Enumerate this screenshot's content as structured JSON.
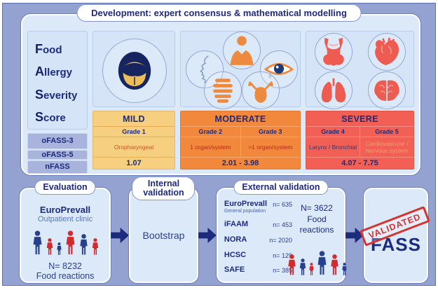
{
  "figure": {
    "title": "Development: expert consensus & mathematical modelling"
  },
  "score_name": {
    "words": [
      "Food",
      "Allergy",
      "Severity",
      "Score"
    ]
  },
  "scales": [
    "oFASS-3",
    "oFASS-5",
    "nFASS"
  ],
  "severity": {
    "mild": {
      "header": "MILD",
      "grade1": "Grade 1",
      "desc1": "Oropharyngeal",
      "value": "1.07",
      "icons": [
        "mouth-icon"
      ]
    },
    "moderate": {
      "header": "MODERATE",
      "grade1": "Grade 2",
      "desc1": "1 organ/system",
      "grade2": "Grade 3",
      "desc2": ">1 organ/system",
      "value": "2.01 - 3.98",
      "icons": [
        "skin-icon",
        "torso-icon",
        "eye-icon",
        "gut-icon",
        "uterus-icon"
      ]
    },
    "severe": {
      "header": "SEVERE",
      "grade1": "Grade 4",
      "desc1": "Larynx / Bronchial",
      "grade2": "Grade 5",
      "desc2": "Cardiovascular / Nervous system",
      "value": "4.07 - 7.75",
      "icons": [
        "larynx-icon",
        "heart-icon",
        "lungs-icon",
        "brain-icon"
      ]
    }
  },
  "evaluation": {
    "pill": "Evaluation",
    "org": "EuroPrevall",
    "sub": "Outpatient clinic",
    "n": "N= 8232",
    "caption": "Food reactions",
    "people": [
      {
        "t": "a",
        "c": "navy"
      },
      {
        "t": "c",
        "c": "red"
      },
      {
        "t": "d",
        "c": "navy"
      },
      {
        "t": "a",
        "c": "red"
      },
      {
        "t": "b",
        "c": "navy"
      },
      {
        "t": "c",
        "c": "red"
      }
    ]
  },
  "internal": {
    "pill": "Internal validation",
    "label": "Bootstrap"
  },
  "external": {
    "pill": "External validation",
    "studies": [
      {
        "name": "EuroPrevall",
        "sub": "General population",
        "n": "n= 635"
      },
      {
        "name": "iFAAM",
        "n": "n= 453"
      },
      {
        "name": "NORA",
        "n": "n= 2020"
      },
      {
        "name": "HCSC",
        "n": "n= 129"
      },
      {
        "name": "SAFE",
        "n": "n= 385"
      }
    ],
    "total": "N= 3622",
    "caption": "Food reactions",
    "people": [
      {
        "t": "b",
        "c": "red"
      },
      {
        "t": "c",
        "c": "navy"
      },
      {
        "t": "d",
        "c": "red"
      },
      {
        "t": "a",
        "c": "navy"
      },
      {
        "t": "b",
        "c": "red"
      },
      {
        "t": "d",
        "c": "navy"
      }
    ]
  },
  "result": {
    "stamp": "VALIDATED",
    "name": "FASS"
  },
  "colors": {
    "navy": "#1d2b7d",
    "background": "#94a2d2",
    "panel": "#dbe9f8",
    "mild_bg": "#f7cf80",
    "moderate_bg": "#f2883c",
    "severe_bg": "#f15f55",
    "stamp_red": "#d23430",
    "person_navy": "#27418c",
    "person_red": "#d22b2f"
  }
}
